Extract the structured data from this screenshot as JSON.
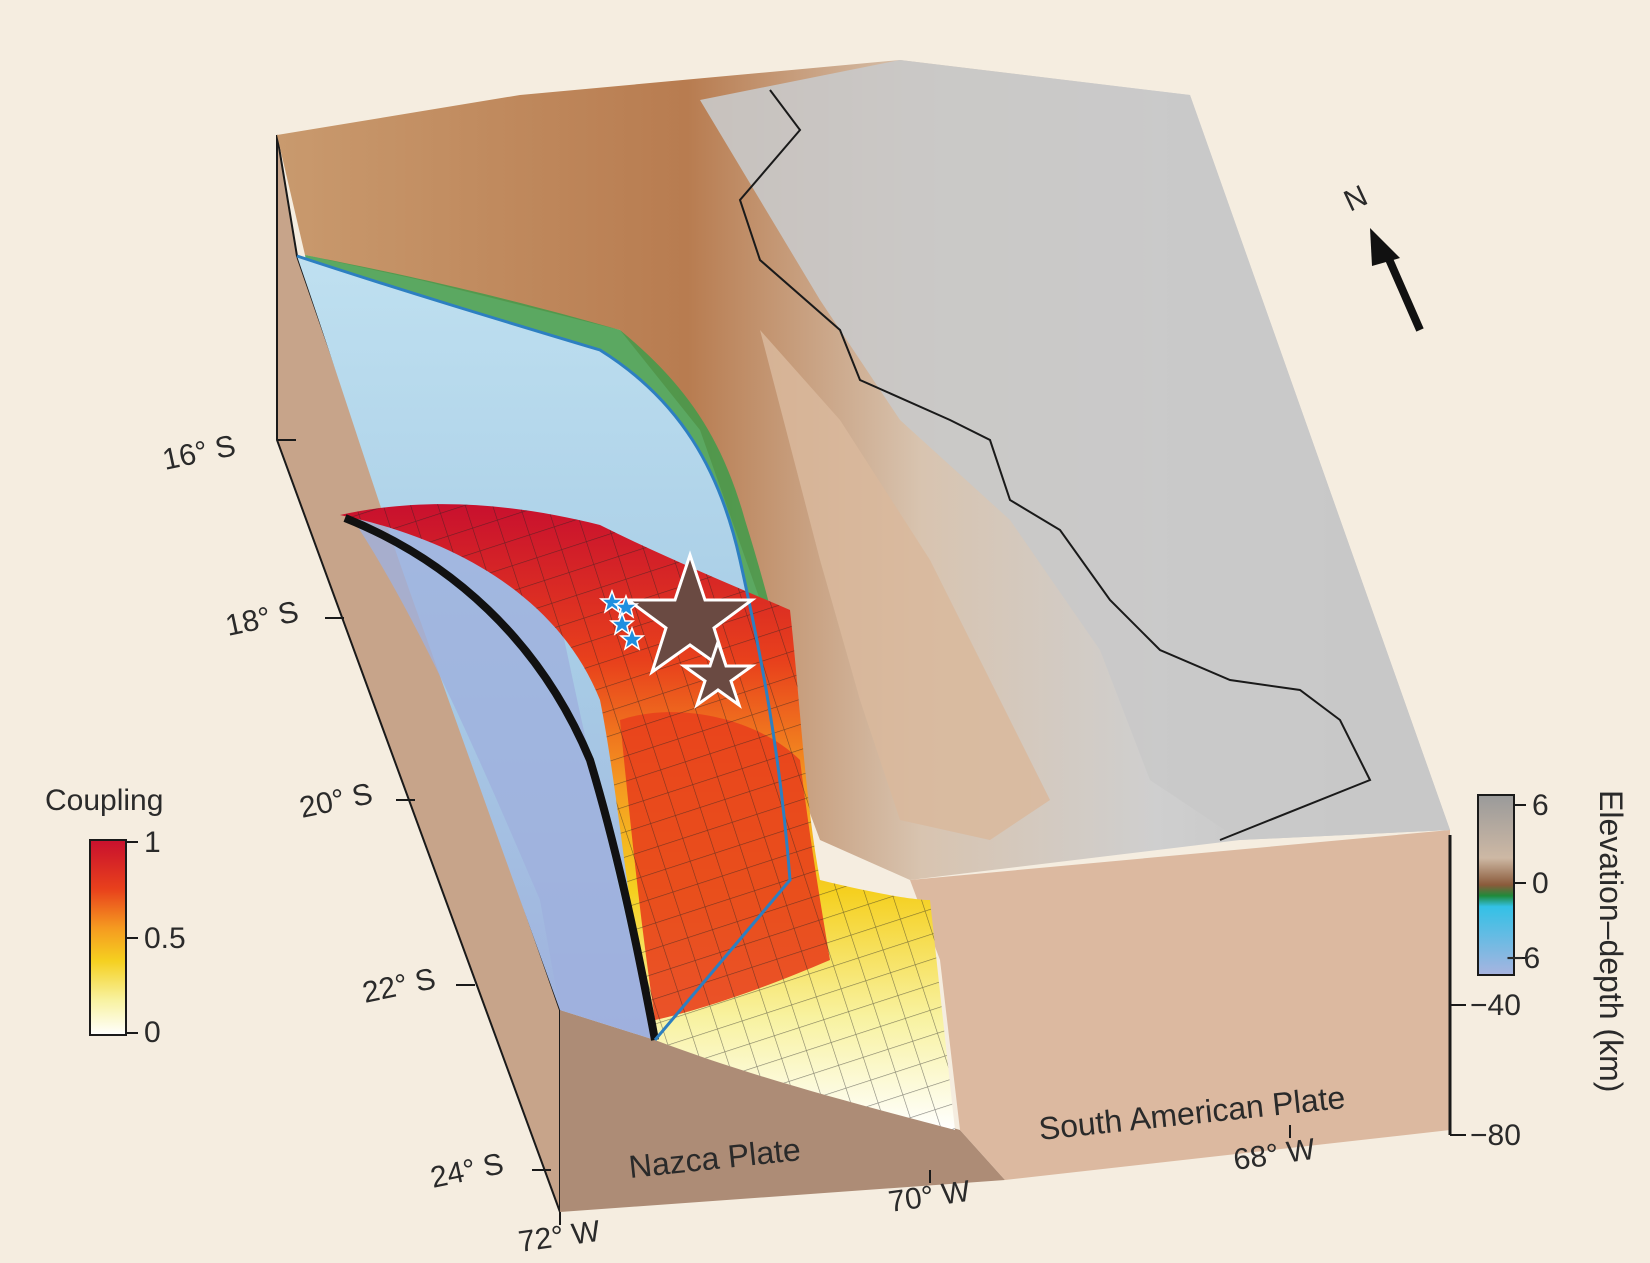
{
  "latitude_ticks": [
    "16° S",
    "18° S",
    "20° S",
    "22° S",
    "24° S"
  ],
  "longitude_ticks": [
    "72° W",
    "70° W",
    "68° W"
  ],
  "north_arrow": {
    "label": "N",
    "icon": "north-arrow-icon"
  },
  "plates": {
    "nazca": "Nazca Plate",
    "south_american": "South American Plate"
  },
  "coupling_legend": {
    "title": "Coupling",
    "ticks": [
      "1",
      "0.5",
      "0"
    ],
    "colors": [
      "#c8102e",
      "#e8401c",
      "#f59a20",
      "#f5d020",
      "#f5f080",
      "#ffffff"
    ]
  },
  "elevation_legend": {
    "title": "Elevation–depth (km)",
    "ticks": [
      "6",
      "0",
      "−6"
    ],
    "colors": [
      "#9a9a9a",
      "#c9b39a",
      "#8a5a3a",
      "#1f8a3a",
      "#33c1e6",
      "#a8b4e0"
    ]
  },
  "depth_ticks": [
    "−40",
    "−80"
  ],
  "colors": {
    "background": "#f5ede0",
    "crust": "#c7a48a",
    "slab_section": "#ad8c76",
    "ocean": "#b8d8ec",
    "deep_ocean": "#9fb0dd",
    "coast_green": "#3f9b4a",
    "highland": "#c9c9c9",
    "border": "#1a1a1a"
  }
}
